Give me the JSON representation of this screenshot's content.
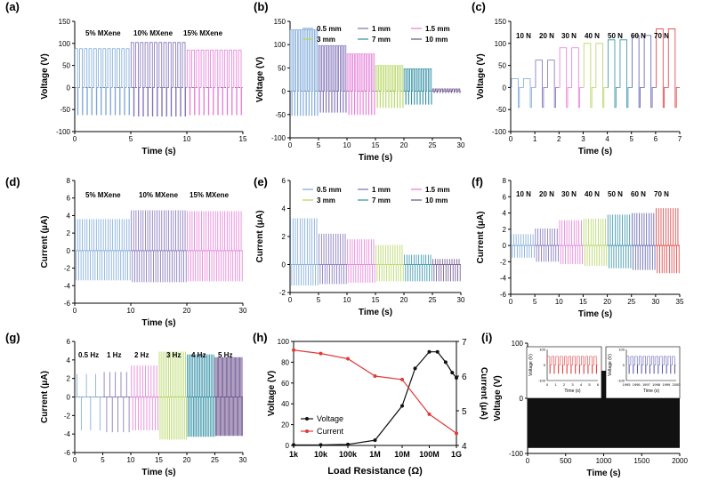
{
  "colors": {
    "blue": "#7aa7d8",
    "purple": "#7f6fb8",
    "pink": "#e67ad8",
    "green": "#b4d65e",
    "teal": "#2f8fa6",
    "dark_purple": "#6a4f8c",
    "navy": "#5b5bb0",
    "gray": "#9aa0a6",
    "red": "#e03a3a",
    "black": "#111111"
  },
  "chart_data": [
    {
      "id": "a",
      "panel_label": "(a)",
      "type": "line",
      "xlabel": "Time (s)",
      "ylabel": "Voltage (V)",
      "xlim": [
        0,
        15
      ],
      "ylim": [
        -100,
        150
      ],
      "xticks": [
        0,
        5,
        10,
        15
      ],
      "yticks": [
        -100,
        -50,
        0,
        50,
        100,
        150
      ],
      "legend": [
        "5% MXene",
        "10% MXene",
        "15% MXene"
      ],
      "zero_line": true,
      "series": [
        {
          "name": "5% MXene",
          "color": "#7aa7d8",
          "x_start": 0,
          "x_end": 5,
          "pulses": 12,
          "max": 88,
          "min": -62
        },
        {
          "name": "10% MXene",
          "color": "#7f6fb8",
          "x_start": 5,
          "x_end": 10,
          "pulses": 12,
          "max": 102,
          "min": -65
        },
        {
          "name": "15% MXene",
          "color": "#e67ad8",
          "x_start": 10,
          "x_end": 15,
          "pulses": 12,
          "max": 85,
          "min": -62
        }
      ]
    },
    {
      "id": "b",
      "panel_label": "(b)",
      "type": "line",
      "xlabel": "Time (s)",
      "ylabel": "Voltage (V)",
      "xlim": [
        0,
        30
      ],
      "ylim": [
        -100,
        150
      ],
      "xticks": [
        0,
        5,
        10,
        15,
        20,
        25,
        30
      ],
      "yticks": [
        -100,
        -50,
        0,
        50,
        100,
        150
      ],
      "legend": [
        "0.5 mm",
        "1 mm",
        "1.5 mm",
        "3 mm",
        "7 mm",
        "10 mm"
      ],
      "zero_line": true,
      "series": [
        {
          "name": "0.5 mm",
          "color": "#7aa7d8",
          "x_start": 0,
          "x_end": 5,
          "pulses": 10,
          "max": 132,
          "min": -52
        },
        {
          "name": "1 mm",
          "color": "#7f6fb8",
          "x_start": 5,
          "x_end": 10,
          "pulses": 10,
          "max": 98,
          "min": -45
        },
        {
          "name": "1.5 mm",
          "color": "#e67ad8",
          "x_start": 10,
          "x_end": 15,
          "pulses": 10,
          "max": 80,
          "min": -50
        },
        {
          "name": "3 mm",
          "color": "#b4d65e",
          "x_start": 15,
          "x_end": 20,
          "pulses": 10,
          "max": 55,
          "min": -35
        },
        {
          "name": "7 mm",
          "color": "#2f8fa6",
          "x_start": 20,
          "x_end": 25,
          "pulses": 10,
          "max": 48,
          "min": -28
        },
        {
          "name": "10 mm",
          "color": "#6a4f8c",
          "x_start": 25,
          "x_end": 30,
          "pulses": 10,
          "max": 5,
          "min": -3
        }
      ]
    },
    {
      "id": "c",
      "panel_label": "(c)",
      "type": "line",
      "xlabel": "Time (s)",
      "ylabel": "Voltage (V)",
      "xlim": [
        0,
        7
      ],
      "ylim": [
        -100,
        150
      ],
      "xticks": [
        0,
        1,
        2,
        3,
        4,
        5,
        6,
        7
      ],
      "yticks": [
        -100,
        -50,
        0,
        50,
        100,
        150
      ],
      "legend": [
        "10 N",
        "20 N",
        "30 N",
        "40 N",
        "50 N",
        "60 N",
        "70 N"
      ],
      "zero_line": false,
      "series": [
        {
          "name": "10 N",
          "color": "#7aa7d8",
          "x_start": 0,
          "x_end": 1,
          "pulses": 2,
          "max": 20,
          "min": -45
        },
        {
          "name": "20 N",
          "color": "#7f6fb8",
          "x_start": 1,
          "x_end": 2,
          "pulses": 2,
          "max": 62,
          "min": -45
        },
        {
          "name": "30 N",
          "color": "#e67ad8",
          "x_start": 2,
          "x_end": 3,
          "pulses": 2,
          "max": 90,
          "min": -45
        },
        {
          "name": "40 N",
          "color": "#b4d65e",
          "x_start": 3,
          "x_end": 4,
          "pulses": 2,
          "max": 100,
          "min": -45
        },
        {
          "name": "50 N",
          "color": "#2f8fa6",
          "x_start": 4,
          "x_end": 5,
          "pulses": 2,
          "max": 108,
          "min": -45
        },
        {
          "name": "60 N",
          "color": "#5b5bb0",
          "x_start": 5,
          "x_end": 6,
          "pulses": 2,
          "max": 118,
          "min": -45
        },
        {
          "name": "70 N",
          "color": "#e03a3a",
          "x_start": 6,
          "x_end": 7,
          "pulses": 2,
          "max": 133,
          "min": -45
        }
      ]
    },
    {
      "id": "d",
      "panel_label": "(d)",
      "type": "line",
      "xlabel": "Time (s)",
      "ylabel": "Current (μA)",
      "xlim": [
        0,
        30
      ],
      "ylim": [
        -6,
        8
      ],
      "xticks": [
        0,
        10,
        20,
        30
      ],
      "yticks": [
        -6,
        -4,
        -2,
        0,
        2,
        4,
        6,
        8
      ],
      "legend": [
        "5% MXene",
        "10% MXene",
        "15% MXene"
      ],
      "zero_line": true,
      "series": [
        {
          "name": "5% MXene",
          "color": "#7aa7d8",
          "x_start": 0,
          "x_end": 10,
          "pulses": 24,
          "max": 3.6,
          "min": -3.4
        },
        {
          "name": "10% MXene",
          "color": "#7f6fb8",
          "x_start": 10,
          "x_end": 20,
          "pulses": 24,
          "max": 4.6,
          "min": -3.6
        },
        {
          "name": "15% MXene",
          "color": "#e67ad8",
          "x_start": 20,
          "x_end": 30,
          "pulses": 24,
          "max": 4.5,
          "min": -3.5
        }
      ]
    },
    {
      "id": "e",
      "panel_label": "(e)",
      "type": "line",
      "xlabel": "Time (s)",
      "ylabel": "Current (μA)",
      "xlim": [
        0,
        30
      ],
      "ylim": [
        -2,
        6
      ],
      "xticks": [
        0,
        5,
        10,
        15,
        20,
        25,
        30
      ],
      "yticks": [
        -2,
        0,
        2,
        4,
        6
      ],
      "legend": [
        "0.5 mm",
        "1 mm",
        "1.5 mm",
        "3 mm",
        "7 mm",
        "10 mm"
      ],
      "zero_line": false,
      "series": [
        {
          "name": "0.5 mm",
          "color": "#7aa7d8",
          "x_start": 0,
          "x_end": 5,
          "pulses": 12,
          "max": 3.3,
          "min": -1.5
        },
        {
          "name": "1 mm",
          "color": "#7f6fb8",
          "x_start": 5,
          "x_end": 10,
          "pulses": 12,
          "max": 2.2,
          "min": -1.4
        },
        {
          "name": "1.5 mm",
          "color": "#e67ad8",
          "x_start": 10,
          "x_end": 15,
          "pulses": 12,
          "max": 1.8,
          "min": -1.3
        },
        {
          "name": "3 mm",
          "color": "#b4d65e",
          "x_start": 15,
          "x_end": 20,
          "pulses": 12,
          "max": 1.4,
          "min": -1.2
        },
        {
          "name": "7 mm",
          "color": "#2f8fa6",
          "x_start": 20,
          "x_end": 25,
          "pulses": 12,
          "max": 0.7,
          "min": -1.2
        },
        {
          "name": "10 mm",
          "color": "#6a4f8c",
          "x_start": 25,
          "x_end": 30,
          "pulses": 12,
          "max": 0.4,
          "min": -1.2
        }
      ]
    },
    {
      "id": "f",
      "panel_label": "(f)",
      "type": "line",
      "xlabel": "Time (s)",
      "ylabel": "Current (μA)",
      "xlim": [
        0,
        35
      ],
      "ylim": [
        -6,
        8
      ],
      "xticks": [
        0,
        5,
        10,
        15,
        20,
        25,
        30,
        35
      ],
      "yticks": [
        -6,
        -4,
        -2,
        0,
        2,
        4,
        6,
        8
      ],
      "legend": [
        "10 N",
        "20 N",
        "30 N",
        "40 N",
        "50 N",
        "60 N",
        "70 N"
      ],
      "zero_line": true,
      "series": [
        {
          "name": "10 N",
          "color": "#7aa7d8",
          "x_start": 0,
          "x_end": 5,
          "pulses": 10,
          "max": 1.4,
          "min": -1.5
        },
        {
          "name": "20 N",
          "color": "#7f6fb8",
          "x_start": 5,
          "x_end": 10,
          "pulses": 10,
          "max": 2.1,
          "min": -2.0
        },
        {
          "name": "30 N",
          "color": "#e67ad8",
          "x_start": 10,
          "x_end": 15,
          "pulses": 10,
          "max": 3.1,
          "min": -2.3
        },
        {
          "name": "40 N",
          "color": "#b4d65e",
          "x_start": 15,
          "x_end": 20,
          "pulses": 10,
          "max": 3.3,
          "min": -2.5
        },
        {
          "name": "50 N",
          "color": "#2f8fa6",
          "x_start": 20,
          "x_end": 25,
          "pulses": 10,
          "max": 3.8,
          "min": -2.8
        },
        {
          "name": "60 N",
          "color": "#5b5bb0",
          "x_start": 25,
          "x_end": 30,
          "pulses": 10,
          "max": 4.0,
          "min": -3.0
        },
        {
          "name": "70 N",
          "color": "#e03a3a",
          "x_start": 30,
          "x_end": 35,
          "pulses": 10,
          "max": 4.6,
          "min": -3.4
        }
      ]
    },
    {
      "id": "g",
      "panel_label": "(g)",
      "type": "line",
      "xlabel": "Time (s)",
      "ylabel": "Current (μA)",
      "xlim": [
        0,
        30
      ],
      "ylim": [
        -6,
        6
      ],
      "xticks": [
        0,
        5,
        10,
        15,
        20,
        25,
        30
      ],
      "yticks": [
        -6,
        -4,
        -2,
        0,
        2,
        4,
        6
      ],
      "legend": [
        "0.5 Hz",
        "1 Hz",
        "2 Hz",
        "3 Hz",
        "4 Hz",
        "5 Hz"
      ],
      "zero_line": true,
      "series": [
        {
          "name": "0.5 Hz",
          "color": "#7aa7d8",
          "x_start": 0,
          "x_end": 5,
          "pulses": 3,
          "max": 2.5,
          "min": -3.6
        },
        {
          "name": "1 Hz",
          "color": "#7f6fb8",
          "x_start": 5,
          "x_end": 10,
          "pulses": 5,
          "max": 2.7,
          "min": -3.8
        },
        {
          "name": "2 Hz",
          "color": "#e67ad8",
          "x_start": 10,
          "x_end": 15,
          "pulses": 10,
          "max": 3.4,
          "min": -3.6
        },
        {
          "name": "3 Hz",
          "color": "#b4d65e",
          "x_start": 15,
          "x_end": 20,
          "pulses": 15,
          "max": 4.9,
          "min": -4.6
        },
        {
          "name": "4 Hz",
          "color": "#2f8fa6",
          "x_start": 20,
          "x_end": 25,
          "pulses": 20,
          "max": 4.6,
          "min": -4.3
        },
        {
          "name": "5 Hz",
          "color": "#6a4f8c",
          "x_start": 25,
          "x_end": 30,
          "pulses": 25,
          "max": 4.3,
          "min": -4.2
        }
      ]
    },
    {
      "id": "h",
      "panel_label": "(h)",
      "type": "line",
      "xlabel": "Load Resistance (Ω)",
      "ylabel": "Voltage (V)",
      "y2label": "Current (μA)",
      "categories": [
        "1k",
        "10k",
        "100k",
        "1M",
        "10M",
        "100M",
        "1G"
      ],
      "xlim": [
        1000,
        1000000000
      ],
      "xscale": "log",
      "ylim": [
        0,
        100
      ],
      "y2lim": [
        4,
        7
      ],
      "yticks": [
        0,
        20,
        40,
        60,
        80,
        100
      ],
      "y2ticks": [
        4,
        5,
        6,
        7
      ],
      "legend": [
        "Voltage",
        "Current"
      ],
      "series": [
        {
          "name": "Voltage",
          "axis": "left",
          "color": "#111111",
          "x": [
            1000,
            10000,
            100000,
            1000000,
            10000000,
            30000000,
            100000000,
            200000000,
            400000000,
            700000000,
            1000000000
          ],
          "y": [
            0.5,
            0.5,
            1,
            5,
            38,
            74,
            90,
            90,
            80,
            70,
            65
          ]
        },
        {
          "name": "Current",
          "axis": "right",
          "color": "#e03a3a",
          "x": [
            1000,
            10000,
            100000,
            1000000,
            10000000,
            100000000,
            1000000000
          ],
          "y": [
            6.75,
            6.65,
            6.5,
            6.0,
            5.9,
            4.9,
            4.35
          ]
        }
      ]
    },
    {
      "id": "i",
      "panel_label": "(i)",
      "type": "area",
      "xlabel": "Time (s)",
      "ylabel": "Voltage (V)",
      "xlim": [
        0,
        2000
      ],
      "ylim": [
        -100,
        100
      ],
      "xticks": [
        0,
        500,
        1000,
        1500,
        2000
      ],
      "yticks": [
        -100,
        0,
        100
      ],
      "series": [
        {
          "name": "",
          "color": "#111111",
          "x_start": 0,
          "x_end": 2000,
          "max": 50,
          "min": -90
        }
      ],
      "insets": [
        {
          "id": "i-inset-1",
          "xlabel": "Time (s)",
          "ylabel": "Voltage (V)",
          "xlim": [
            0,
            6
          ],
          "ylim": [
            -100,
            100
          ],
          "xticks": [
            0,
            1,
            2,
            3,
            4,
            5,
            6
          ],
          "yticks": [
            -100,
            0,
            100
          ],
          "color": "#e03a3a",
          "pulses": 12,
          "max": 55,
          "min": -55
        },
        {
          "id": "i-inset-2",
          "xlabel": "Time (s)",
          "ylabel": "Voltage (V)",
          "xlim": [
            1995,
            2000
          ],
          "ylim": [
            -100,
            100
          ],
          "xticks": [
            1995,
            1996,
            1997,
            1998,
            1999,
            2000
          ],
          "yticks": [
            -100,
            0,
            100
          ],
          "color": "#5b5bb0",
          "pulses": 12,
          "max": 55,
          "min": -55
        }
      ]
    }
  ]
}
